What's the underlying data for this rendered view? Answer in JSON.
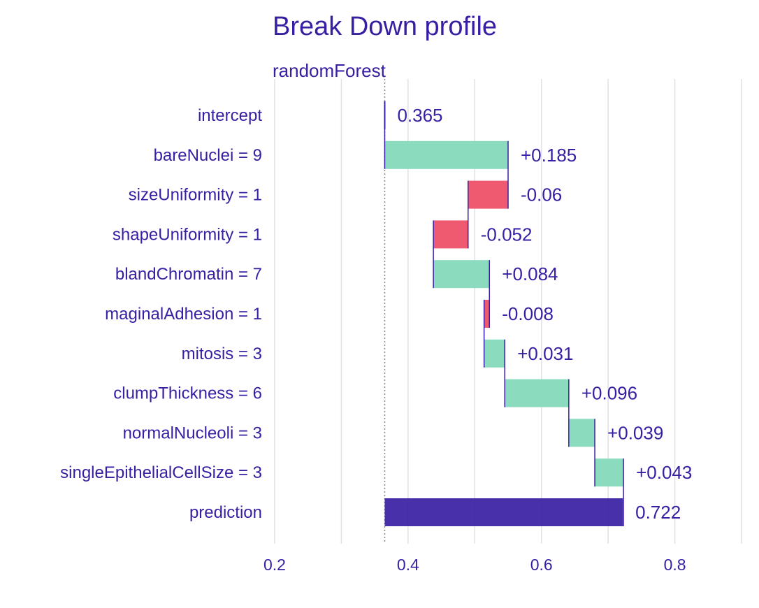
{
  "chart_data": {
    "type": "bar",
    "title": "Break Down profile",
    "subtitle": "randomForest",
    "xlim": [
      0.2,
      0.9
    ],
    "x_ticks": [
      0.2,
      0.4,
      0.6,
      0.8
    ],
    "x_tick_labels": [
      "0.2",
      "0.4",
      "0.6",
      "0.8"
    ],
    "grid": true,
    "baseline": 0.365,
    "colors": {
      "positive": "#8bdcbe",
      "negative": "#f05a71",
      "prediction": "#371ea3",
      "text": "#371ea3",
      "grid": "#e0e0e6"
    },
    "rows": [
      {
        "label": "intercept",
        "start": 0.365,
        "end": 0.365,
        "value_label": "0.365",
        "kind": "intercept"
      },
      {
        "label": "bareNuclei = 9",
        "start": 0.365,
        "end": 0.55,
        "value_label": "+0.185",
        "kind": "positive"
      },
      {
        "label": "sizeUniformity = 1",
        "start": 0.55,
        "end": 0.49,
        "value_label": "-0.06",
        "kind": "negative"
      },
      {
        "label": "shapeUniformity = 1",
        "start": 0.49,
        "end": 0.438,
        "value_label": "-0.052",
        "kind": "negative"
      },
      {
        "label": "blandChromatin = 7",
        "start": 0.438,
        "end": 0.522,
        "value_label": "+0.084",
        "kind": "positive"
      },
      {
        "label": "maginalAdhesion = 1",
        "start": 0.522,
        "end": 0.514,
        "value_label": "-0.008",
        "kind": "negative"
      },
      {
        "label": "mitosis = 3",
        "start": 0.514,
        "end": 0.545,
        "value_label": "+0.031",
        "kind": "positive"
      },
      {
        "label": "clumpThickness = 6",
        "start": 0.545,
        "end": 0.641,
        "value_label": "+0.096",
        "kind": "positive"
      },
      {
        "label": "normalNucleoli = 3",
        "start": 0.641,
        "end": 0.68,
        "value_label": "+0.039",
        "kind": "positive"
      },
      {
        "label": "singleEpithelialCellSize = 3",
        "start": 0.68,
        "end": 0.723,
        "value_label": "+0.043",
        "kind": "positive"
      },
      {
        "label": "prediction",
        "start": 0.365,
        "end": 0.722,
        "value_label": "0.722",
        "kind": "prediction"
      }
    ]
  }
}
